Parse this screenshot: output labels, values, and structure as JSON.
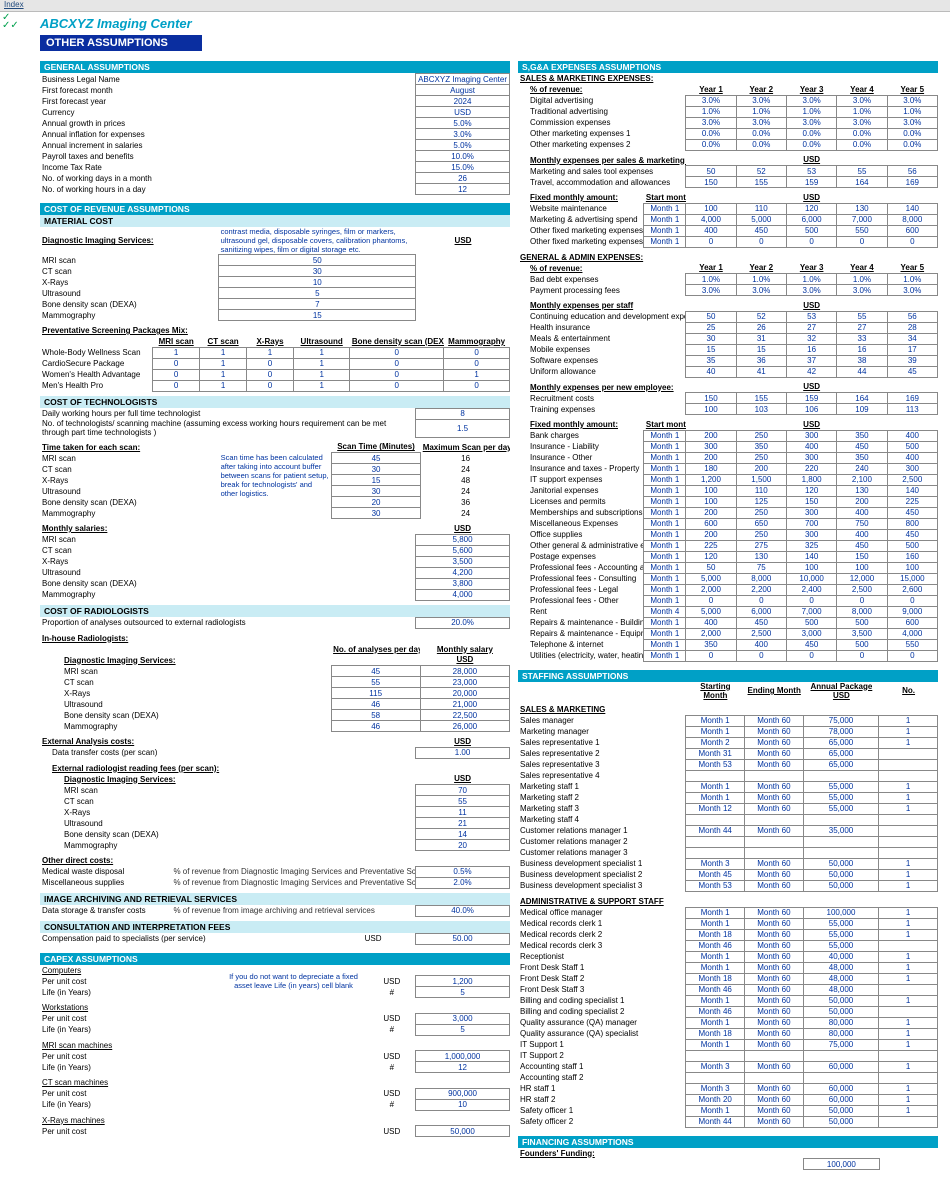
{
  "topbar_link": "Index",
  "brand": "ABCXYZ Imaging Center",
  "page_title": "OTHER ASSUMPTIONS",
  "general": {
    "title": "GENERAL ASSUMPTIONS",
    "rows": [
      [
        "Business Legal Name",
        "ABCXYZ Imaging Center"
      ],
      [
        "First forecast month",
        "August"
      ],
      [
        "First forecast year",
        "2024"
      ],
      [
        "Currency",
        "USD"
      ],
      [
        "Annual growth in prices",
        "5.0%"
      ],
      [
        "Annual inflation for expenses",
        "3.0%"
      ],
      [
        "Annual increment in salaries",
        "5.0%"
      ],
      [
        "Payroll taxes and benefits",
        "10.0%"
      ],
      [
        "Income Tax Rate",
        "15.0%"
      ],
      [
        "No. of working days in a month",
        "26"
      ],
      [
        "No. of working hours in a day",
        "12"
      ]
    ]
  },
  "cost_rev": {
    "title": "COST OF REVENUE ASSUMPTIONS",
    "material_title": "MATERIAL COST",
    "diag_title": "Diagnostic Imaging Services:",
    "usd": "USD",
    "diag_note": "contrast media, disposable syringes, film or markers, ultrasound gel, disposable covers, calibration phantoms, sanitizing wipes, film or digital storage etc.",
    "diag_items": [
      [
        "MRI scan",
        "50"
      ],
      [
        "CT scan",
        "30"
      ],
      [
        "X-Rays",
        "10"
      ],
      [
        "Ultrasound",
        "5"
      ],
      [
        "Bone density scan (DEXA)",
        "7"
      ],
      [
        "Mammography",
        "15"
      ]
    ],
    "screen_title": "Preventative Screening Packages Mix:",
    "screen_cols": [
      "MRI scan",
      "CT scan",
      "X-Rays",
      "Ultrasound",
      "Bone density scan (DEXA)",
      "Mammography"
    ],
    "screen_rows": [
      [
        "Whole-Body Wellness Scan",
        "1",
        "1",
        "1",
        "1",
        "0",
        "0"
      ],
      [
        "CardioSecure Package",
        "0",
        "1",
        "0",
        "1",
        "0",
        "0"
      ],
      [
        "Women's Health Advantage",
        "0",
        "1",
        "0",
        "1",
        "0",
        "1"
      ],
      [
        "Men's Health Pro",
        "0",
        "1",
        "0",
        "1",
        "0",
        "0"
      ]
    ],
    "tech_title": "COST OF TECHNOLOGISTS",
    "tech_rows": [
      [
        "Daily working hours per full time technologist",
        "8"
      ],
      [
        "No. of technologists/ scanning machine (assuming excess working hours requirement can be met through part time technologists )",
        "1.5"
      ]
    ],
    "scan_title": "Time taken for each scan:",
    "scan_cols": [
      "Scan Time (Minutes)",
      "Maximum Scan per day"
    ],
    "scan_note": "Scan time has been calculated after taking into account buffer between scans for patient setup, break for technologists' and other logistics.",
    "scan_rows": [
      [
        "MRI scan",
        "45",
        "16"
      ],
      [
        "CT scan",
        "30",
        "24"
      ],
      [
        "X-Rays",
        "15",
        "48"
      ],
      [
        "Ultrasound",
        "30",
        "24"
      ],
      [
        "Bone density scan (DEXA)",
        "20",
        "36"
      ],
      [
        "Mammography",
        "30",
        "24"
      ]
    ],
    "salaries_title": "Monthly salaries:",
    "salaries": [
      [
        "MRI scan",
        "5,800"
      ],
      [
        "CT scan",
        "5,600"
      ],
      [
        "X-Rays",
        "3,500"
      ],
      [
        "Ultrasound",
        "4,200"
      ],
      [
        "Bone density scan (DEXA)",
        "3,800"
      ],
      [
        "Mammography",
        "4,000"
      ]
    ],
    "radio_title": "COST OF RADIOLOGISTS",
    "radio_prop": [
      "Proportion of analyses outsourced to external radiologists",
      "20.0%"
    ],
    "inhouse_title": "In-house Radiologists:",
    "inhouse_cols": [
      "No. of analyses per day",
      "Monthly salary"
    ],
    "inhouse_usd": "USD",
    "inhouse_rows": [
      [
        "MRI scan",
        "45",
        "28,000"
      ],
      [
        "CT scan",
        "55",
        "23,000"
      ],
      [
        "X-Rays",
        "115",
        "20,000"
      ],
      [
        "Ultrasound",
        "46",
        "21,000"
      ],
      [
        "Bone density scan (DEXA)",
        "58",
        "22,500"
      ],
      [
        "Mammography",
        "46",
        "26,000"
      ]
    ],
    "ext_title": "External Analysis costs:",
    "ext_row": [
      "Data transfer costs (per scan)",
      "1.00"
    ],
    "ext_fee_title": "External radiologist reading fees (per scan):",
    "ext_fee_sub": "Diagnostic Imaging Services:",
    "ext_fees": [
      [
        "MRI scan",
        "70"
      ],
      [
        "CT scan",
        "55"
      ],
      [
        "X-Rays",
        "11"
      ],
      [
        "Ultrasound",
        "21"
      ],
      [
        "Bone density scan (DEXA)",
        "14"
      ],
      [
        "Mammography",
        "20"
      ]
    ],
    "other_title": "Other direct costs:",
    "other_rows": [
      [
        "Medical waste disposal",
        "% of revenue from Diagnostic Imaging Services and Preventative Screening Packages",
        "0.5%"
      ],
      [
        "Miscellaneous supplies",
        "% of revenue from Diagnostic Imaging Services and Preventative Screening Packages",
        "2.0%"
      ]
    ],
    "imgarc_title": "IMAGE ARCHIVING AND RETRIEVAL SERVICES",
    "imgarc_row": [
      "Data storage & transfer costs",
      "% of revenue from image archiving and retrieval services",
      "40.0%"
    ],
    "consult_title": "CONSULTATION AND INTERPRETATION FEES",
    "consult_row": [
      "Compensation paid to specialists (per service)",
      "USD",
      "50.00"
    ]
  },
  "capex": {
    "title": "CAPEX ASSUMPTIONS",
    "note": "If you do not want to depreciate a fixed asset leave Life (in years) cell blank",
    "items": [
      {
        "name": "Computers",
        "u": "USD",
        "p": "1,200",
        "ln": "#",
        "l": "5"
      },
      {
        "name": "Workstations",
        "u": "USD",
        "p": "3,000",
        "ln": "#",
        "l": "5"
      },
      {
        "name": "MRI scan machines",
        "u": "USD",
        "p": "1,000,000",
        "ln": "#",
        "l": "12"
      },
      {
        "name": "CT scan machines",
        "u": "USD",
        "p": "900,000",
        "ln": "#",
        "l": "10"
      },
      {
        "name": "X-Rays machines",
        "u": "USD",
        "p": "50,000",
        "ln": "",
        "l": ""
      }
    ],
    "per_unit": "Per unit cost",
    "life": "Life (in Years)"
  },
  "sga": {
    "title": "S,G&A EXPENSES ASSUMPTIONS",
    "smexp": "SALES & MARKETING EXPENSES:",
    "pctrev": "% of revenue:",
    "yrs": [
      "Year 1",
      "Year 2",
      "Year 3",
      "Year 4",
      "Year 5"
    ],
    "pctrows": [
      [
        "Digital advertising",
        "3.0%",
        "3.0%",
        "3.0%",
        "3.0%",
        "3.0%"
      ],
      [
        "Traditional advertising",
        "1.0%",
        "1.0%",
        "1.0%",
        "1.0%",
        "1.0%"
      ],
      [
        "Commission expenses",
        "3.0%",
        "3.0%",
        "3.0%",
        "3.0%",
        "3.0%"
      ],
      [
        "Other marketing expenses 1",
        "0.0%",
        "0.0%",
        "0.0%",
        "0.0%",
        "0.0%"
      ],
      [
        "Other marketing expenses 2",
        "0.0%",
        "0.0%",
        "0.0%",
        "0.0%",
        "0.0%"
      ]
    ],
    "mexp_staff": "Monthly expenses per sales & marketing staff",
    "usd": "USD",
    "mexp_rows": [
      [
        "Marketing and sales tool expenses",
        "50",
        "52",
        "53",
        "55",
        "56"
      ],
      [
        "Travel, accommodation and allowances",
        "150",
        "155",
        "159",
        "164",
        "169"
      ]
    ],
    "fixed_title": "Fixed monthly amount:",
    "startm": "Start month",
    "fixed_rows": [
      [
        "Website maintenance",
        "Month 1",
        "100",
        "110",
        "120",
        "130",
        "140"
      ],
      [
        "Marketing & advertising spend",
        "Month 1",
        "4,000",
        "5,000",
        "6,000",
        "7,000",
        "8,000"
      ],
      [
        "Other fixed marketing expenses 1",
        "Month 1",
        "400",
        "450",
        "500",
        "550",
        "600"
      ],
      [
        "Other fixed marketing expenses 2",
        "Month 1",
        "0",
        "0",
        "0",
        "0",
        "0"
      ]
    ],
    "gaexp": "GENERAL & ADMIN EXPENSES:",
    "ga_pct": [
      [
        "Bad debt expenses",
        "1.0%",
        "1.0%",
        "1.0%",
        "1.0%",
        "1.0%"
      ],
      [
        "Payment processing fees",
        "3.0%",
        "3.0%",
        "3.0%",
        "3.0%",
        "3.0%"
      ]
    ],
    "mexp_pstaff": "Monthly expenses per staff",
    "ga_staff": [
      [
        "Continuing education and development expenses",
        "50",
        "52",
        "53",
        "55",
        "56"
      ],
      [
        "Health insurance",
        "25",
        "26",
        "27",
        "27",
        "28"
      ],
      [
        "Meals & entertainment",
        "30",
        "31",
        "32",
        "33",
        "34"
      ],
      [
        "Mobile expenses",
        "15",
        "15",
        "16",
        "16",
        "17"
      ],
      [
        "Software expenses",
        "35",
        "36",
        "37",
        "38",
        "39"
      ],
      [
        "Uniform allowance",
        "40",
        "41",
        "42",
        "44",
        "45"
      ]
    ],
    "mexp_new": "Monthly expenses per new employee:",
    "ga_new": [
      [
        "Recruitment costs",
        "150",
        "155",
        "159",
        "164",
        "169"
      ],
      [
        "Training expenses",
        "100",
        "103",
        "106",
        "109",
        "113"
      ]
    ],
    "ga_fixed": [
      [
        "Bank charges",
        "Month 1",
        "200",
        "250",
        "300",
        "350",
        "400"
      ],
      [
        "Insurance - Liability",
        "Month 1",
        "300",
        "350",
        "400",
        "450",
        "500"
      ],
      [
        "Insurance - Other",
        "Month 1",
        "200",
        "250",
        "300",
        "350",
        "400"
      ],
      [
        "Insurance and taxes - Property",
        "Month 1",
        "180",
        "200",
        "220",
        "240",
        "300"
      ],
      [
        "IT support expenses",
        "Month 1",
        "1,200",
        "1,500",
        "1,800",
        "2,100",
        "2,500"
      ],
      [
        "Janitorial expenses",
        "Month 1",
        "100",
        "110",
        "120",
        "130",
        "140"
      ],
      [
        "Licenses and permits",
        "Month 1",
        "100",
        "125",
        "150",
        "200",
        "225"
      ],
      [
        "Memberships and subscriptions",
        "Month 1",
        "200",
        "250",
        "300",
        "400",
        "450"
      ],
      [
        "Miscellaneous Expenses",
        "Month 1",
        "600",
        "650",
        "700",
        "750",
        "800"
      ],
      [
        "Office supplies",
        "Month 1",
        "200",
        "250",
        "300",
        "400",
        "450"
      ],
      [
        "Other general & administrative expense",
        "Month 1",
        "225",
        "275",
        "325",
        "450",
        "500"
      ],
      [
        "Postage expenses",
        "Month 1",
        "120",
        "130",
        "140",
        "150",
        "160"
      ],
      [
        "Professional fees - Accounting and auditing",
        "Month 1",
        "50",
        "75",
        "100",
        "100",
        "100"
      ],
      [
        "Professional fees - Consulting",
        "Month 1",
        "5,000",
        "8,000",
        "10,000",
        "12,000",
        "15,000"
      ],
      [
        "Professional fees - Legal",
        "Month 1",
        "2,000",
        "2,200",
        "2,400",
        "2,500",
        "2,600"
      ],
      [
        "Professional fees - Other",
        "Month 1",
        "0",
        "0",
        "0",
        "0",
        "0"
      ],
      [
        "Rent",
        "Month 4",
        "5,000",
        "6,000",
        "7,000",
        "8,000",
        "9,000"
      ],
      [
        "Repairs & maintenance - Building",
        "Month 1",
        "400",
        "450",
        "500",
        "500",
        "600"
      ],
      [
        "Repairs & maintenance - Equipment",
        "Month 1",
        "2,000",
        "2,500",
        "3,000",
        "3,500",
        "4,000"
      ],
      [
        "Telephone & internet",
        "Month 1",
        "350",
        "400",
        "450",
        "500",
        "550"
      ],
      [
        "Utilities (electricity, water, heating, air conditioning)",
        "Month 1",
        "0",
        "0",
        "0",
        "0",
        "0"
      ]
    ]
  },
  "staffing": {
    "title": "STAFFING ASSUMPTIONS",
    "cols": [
      "Starting Month",
      "Ending Month",
      "Annual Package USD",
      "No."
    ],
    "sm": "SALES & MARKETING",
    "sm_rows": [
      [
        "Sales manager",
        "Month 1",
        "Month 60",
        "75,000",
        "1"
      ],
      [
        "Marketing manager",
        "Month 1",
        "Month 60",
        "78,000",
        "1"
      ],
      [
        "Sales representative 1",
        "Month 2",
        "Month 60",
        "65,000",
        "1"
      ],
      [
        "Sales representative 2",
        "Month 31",
        "Month 60",
        "65,000",
        ""
      ],
      [
        "Sales representative 3",
        "Month 53",
        "Month 60",
        "65,000",
        ""
      ],
      [
        "Sales representative 4",
        "",
        "",
        "",
        ""
      ],
      [
        "Marketing staff 1",
        "Month 1",
        "Month 60",
        "55,000",
        "1"
      ],
      [
        "Marketing staff 2",
        "Month 1",
        "Month 60",
        "55,000",
        "1"
      ],
      [
        "Marketing staff 3",
        "Month 12",
        "Month 60",
        "55,000",
        "1"
      ],
      [
        "Marketing staff 4",
        "",
        "",
        "",
        ""
      ],
      [
        "Customer relations manager 1",
        "Month 44",
        "Month 60",
        "35,000",
        ""
      ],
      [
        "Customer relations manager 2",
        "",
        "",
        "",
        ""
      ],
      [
        "Customer relations manager 3",
        "",
        "",
        "",
        ""
      ],
      [
        "Business development specialist 1",
        "Month 3",
        "Month 60",
        "50,000",
        "1"
      ],
      [
        "Business development specialist 2",
        "Month 45",
        "Month 60",
        "50,000",
        "1"
      ],
      [
        "Business development specialist 3",
        "Month 53",
        "Month 60",
        "50,000",
        "1"
      ]
    ],
    "adm": "ADMINISTRATIVE & SUPPORT STAFF",
    "adm_rows": [
      [
        "Medical office manager",
        "Month 1",
        "Month 60",
        "100,000",
        "1"
      ],
      [
        "Medical records clerk 1",
        "Month 1",
        "Month 60",
        "55,000",
        "1"
      ],
      [
        "Medical records clerk 2",
        "Month 18",
        "Month 60",
        "55,000",
        "1"
      ],
      [
        "Medical records clerk 3",
        "Month 46",
        "Month 60",
        "55,000",
        ""
      ],
      [
        "Receptionist",
        "Month 1",
        "Month 60",
        "40,000",
        "1"
      ],
      [
        "Front Desk Staff 1",
        "Month 1",
        "Month 60",
        "48,000",
        "1"
      ],
      [
        "Front Desk Staff 2",
        "Month 18",
        "Month 60",
        "48,000",
        "1"
      ],
      [
        "Front Desk Staff 3",
        "Month 46",
        "Month 60",
        "48,000",
        ""
      ],
      [
        "Billing and coding specialist 1",
        "Month 1",
        "Month 60",
        "50,000",
        "1"
      ],
      [
        "Billing and coding specialist 2",
        "Month 46",
        "Month 60",
        "50,000",
        ""
      ],
      [
        "Quality assurance (QA) manager",
        "Month 1",
        "Month 60",
        "80,000",
        "1"
      ],
      [
        "Quality assurance (QA) specialist",
        "Month 18",
        "Month 60",
        "80,000",
        "1"
      ],
      [
        "IT Support 1",
        "Month 1",
        "Month 60",
        "75,000",
        "1"
      ],
      [
        "IT Support 2",
        "",
        "",
        "",
        ""
      ],
      [
        "Accounting staff 1",
        "Month 3",
        "Month 60",
        "60,000",
        "1"
      ],
      [
        "Accounting staff 2",
        "",
        "",
        "",
        ""
      ],
      [
        "HR staff 1",
        "Month 3",
        "Month 60",
        "60,000",
        "1"
      ],
      [
        "HR staff 2",
        "Month 20",
        "Month 60",
        "60,000",
        "1"
      ],
      [
        "Safety officer 1",
        "Month 1",
        "Month 60",
        "50,000",
        "1"
      ],
      [
        "Safety officer 2",
        "Month 44",
        "Month 60",
        "50,000",
        ""
      ]
    ]
  },
  "fin": {
    "title": "FINANCING ASSUMPTIONS",
    "founders": "Founders' Funding:",
    "row": [
      "",
      "",
      "",
      "100,000"
    ]
  }
}
